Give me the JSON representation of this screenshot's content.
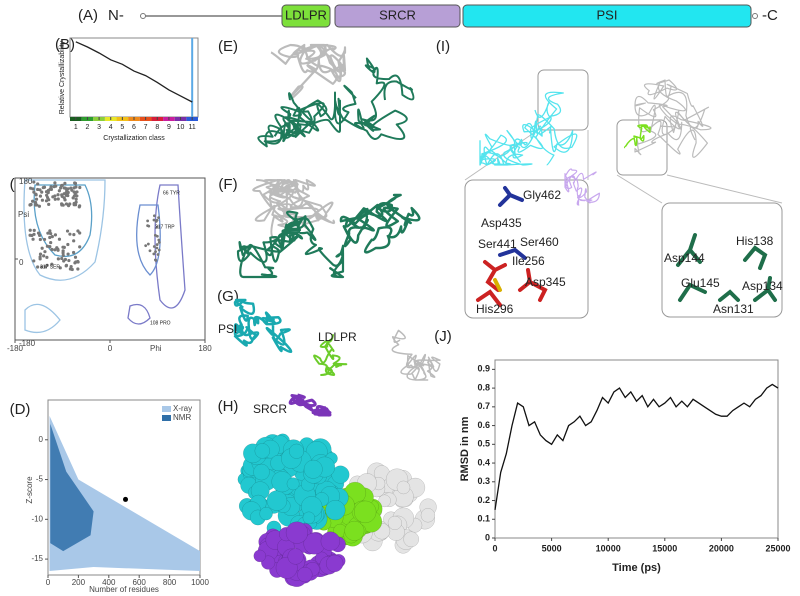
{
  "figure": {
    "panel_labels": [
      "(A)",
      "(B)",
      "(C)",
      "(D)",
      "(E)",
      "(F)",
      "(G)",
      "(H)",
      "(I)",
      "(J)"
    ],
    "domain_map": {
      "n_term": "N-",
      "c_term": "-C",
      "domains": [
        {
          "label": "LDLPR",
          "color": "#7de03a"
        },
        {
          "label": "SRCR",
          "color": "#b79fd6"
        },
        {
          "label": "PSI",
          "color": "#22e6f0"
        }
      ]
    },
    "ramachandran": {
      "x_label": "Phi",
      "y_label": "Psi",
      "xlim": [
        -180,
        180
      ],
      "ylim": [
        -180,
        180
      ],
      "xticks": [
        -180,
        0,
        180
      ],
      "yticks": [
        180,
        0,
        -180
      ],
      "annotations": [
        "66 TYR",
        "217 TRP",
        "317 SER",
        "108 PRO"
      ]
    },
    "zscore": {
      "x_label": "Number of residues",
      "y_label": "Z-score",
      "legend": [
        {
          "name": "X-ray",
          "color": "#a9c8e8"
        },
        {
          "name": "NMR",
          "color": "#2f6fa8"
        }
      ],
      "xlim": [
        0,
        1000
      ],
      "xticks": [
        0,
        200,
        400,
        600,
        800,
        1000
      ],
      "ylim": [
        -17,
        5
      ],
      "yticks": [
        0,
        -5,
        -10,
        -15
      ]
    },
    "structure_labels": {
      "G": [
        "PSI",
        "LDLPR",
        "SRCR"
      ],
      "I": [
        "Gly462",
        "Asp435",
        "Ser441",
        "Ser460",
        "Ile256",
        "Asp345",
        "His296",
        "His138",
        "Asp144",
        "Glu145",
        "Asp134",
        "Asn131"
      ]
    }
  },
  "chart_data": [
    {
      "type": "line",
      "x_label": "Crystallization class",
      "y_label": "Relative Crystallizability",
      "x": [
        1,
        2,
        3,
        4,
        5,
        6,
        7,
        8,
        9,
        10,
        11
      ],
      "values": [
        1.0,
        0.93,
        0.85,
        0.76,
        0.7,
        0.61,
        0.55,
        0.46,
        0.36,
        0.28,
        0.2
      ],
      "color": "#222222",
      "xlim": [
        0.5,
        11.5
      ],
      "ylim": [
        0,
        1.05
      ],
      "xticks": [
        1,
        2,
        3,
        4,
        5,
        6,
        7,
        8,
        9,
        10,
        11
      ],
      "class_colors": [
        "#1a5e20",
        "#2e9e2e",
        "#8ccf3a",
        "#e8e82a",
        "#f2c018",
        "#f08a1a",
        "#e8501c",
        "#d81e3a",
        "#c81e9e",
        "#7a2ea8",
        "#2a5ad8"
      ],
      "marker": 11,
      "marker_color": "#5aa9e6"
    },
    {
      "type": "line",
      "x_label": "Time (ps)",
      "y_label": "RMSD in nm",
      "x": [
        0,
        500,
        1000,
        1500,
        2000,
        2500,
        3000,
        3500,
        4000,
        4500,
        5000,
        5500,
        6000,
        6500,
        7000,
        7500,
        8000,
        8500,
        9000,
        9500,
        10000,
        10500,
        11000,
        11500,
        12000,
        12500,
        13000,
        13500,
        14000,
        14500,
        15000,
        15500,
        16000,
        16500,
        17000,
        17500,
        18000,
        18500,
        19000,
        19500,
        20000,
        20500,
        21000,
        21500,
        22000,
        22500,
        23000,
        23500,
        24000,
        24500,
        25000
      ],
      "values": [
        0.15,
        0.35,
        0.45,
        0.6,
        0.72,
        0.7,
        0.6,
        0.62,
        0.55,
        0.52,
        0.5,
        0.55,
        0.52,
        0.6,
        0.62,
        0.65,
        0.6,
        0.62,
        0.68,
        0.75,
        0.72,
        0.78,
        0.8,
        0.75,
        0.78,
        0.73,
        0.76,
        0.7,
        0.74,
        0.7,
        0.72,
        0.75,
        0.7,
        0.73,
        0.7,
        0.74,
        0.72,
        0.7,
        0.68,
        0.66,
        0.65,
        0.65,
        0.68,
        0.7,
        0.72,
        0.7,
        0.74,
        0.76,
        0.8,
        0.82,
        0.8
      ],
      "color": "#111111",
      "xlim": [
        0,
        25000
      ],
      "ylim": [
        0,
        0.95
      ],
      "xticks": [
        0,
        5000,
        10000,
        15000,
        20000,
        25000
      ],
      "yticks": [
        0,
        0.1,
        0.2,
        0.3,
        0.4,
        0.5,
        0.6,
        0.7,
        0.8,
        0.9
      ]
    }
  ]
}
